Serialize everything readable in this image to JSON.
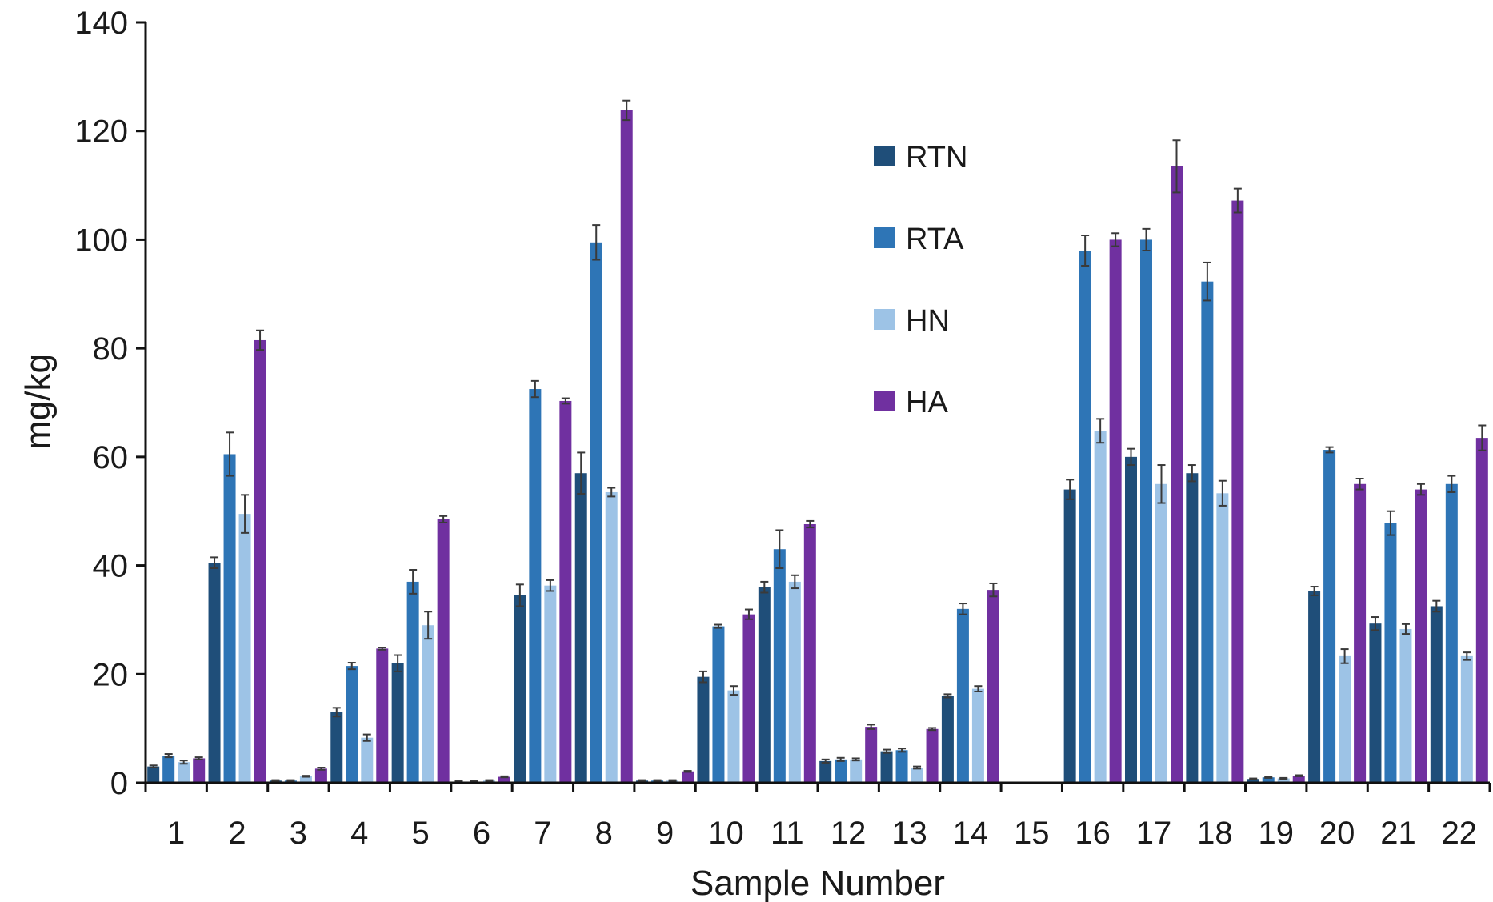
{
  "chart_data": {
    "type": "bar",
    "title": "",
    "xlabel": "Sample Number",
    "ylabel": "mg/kg",
    "ylim": [
      0,
      140
    ],
    "yticks": [
      0,
      20,
      40,
      60,
      80,
      100,
      120,
      140
    ],
    "grid": false,
    "legend_position": "top-center",
    "categories": [
      "1",
      "2",
      "3",
      "4",
      "5",
      "6",
      "7",
      "8",
      "9",
      "10",
      "11",
      "12",
      "13",
      "14",
      "15",
      "16",
      "17",
      "18",
      "19",
      "20",
      "21",
      "22"
    ],
    "series": [
      {
        "name": "RTN",
        "color": "#1f4e79",
        "values": [
          3,
          40.5,
          0.4,
          13,
          22,
          0.2,
          34.5,
          57,
          0.4,
          19.5,
          36,
          4,
          5.8,
          16,
          0,
          54,
          60,
          57,
          0.7,
          35.3,
          29.3,
          32.5
        ],
        "errors": [
          0.2,
          1,
          0.1,
          0.8,
          1.5,
          0.1,
          2,
          3.8,
          0.1,
          1,
          1,
          0.3,
          0.3,
          0.3,
          0,
          1.8,
          1.5,
          1.5,
          0.1,
          0.8,
          1.2,
          1
        ]
      },
      {
        "name": "RTA",
        "color": "#2e75b6",
        "values": [
          5,
          60.5,
          0.4,
          21.5,
          37,
          0.2,
          72.5,
          99.5,
          0.4,
          28.8,
          43,
          4.3,
          6,
          32,
          0,
          98,
          100,
          92.3,
          1,
          61.3,
          47.8,
          55
        ],
        "errors": [
          0.3,
          4,
          0.1,
          0.6,
          2.2,
          0.1,
          1.5,
          3.2,
          0.1,
          0.3,
          3.5,
          0.3,
          0.3,
          1,
          0,
          2.8,
          2,
          3.5,
          0.1,
          0.5,
          2.2,
          1.5
        ]
      },
      {
        "name": "HN",
        "color": "#9dc3e6",
        "values": [
          3.8,
          49.5,
          1.2,
          8.3,
          29,
          0.4,
          36.3,
          53.5,
          0.4,
          17,
          37,
          4.3,
          2.8,
          17.3,
          0,
          64.8,
          55,
          53.3,
          0.8,
          23.3,
          28.3,
          23.3
        ],
        "errors": [
          0.3,
          3.5,
          0.1,
          0.6,
          2.5,
          0.1,
          1,
          0.8,
          0.1,
          0.8,
          1.2,
          0.2,
          0.2,
          0.5,
          0,
          2.2,
          3.5,
          2.3,
          0.1,
          1.3,
          0.9,
          0.7
        ]
      },
      {
        "name": "HA",
        "color": "#7030a0",
        "values": [
          4.5,
          81.5,
          2.6,
          24.7,
          48.5,
          1.1,
          70.3,
          123.8,
          2.1,
          31,
          47.6,
          10.3,
          9.9,
          35.5,
          0,
          100,
          113.5,
          107.2,
          1.3,
          55,
          54,
          63.5
        ],
        "errors": [
          0.2,
          1.8,
          0.2,
          0.2,
          0.6,
          0.1,
          0.5,
          1.8,
          0.1,
          0.9,
          0.6,
          0.4,
          0.2,
          1.2,
          0,
          1.2,
          4.8,
          2.2,
          0.1,
          1,
          1,
          2.3
        ]
      }
    ]
  }
}
